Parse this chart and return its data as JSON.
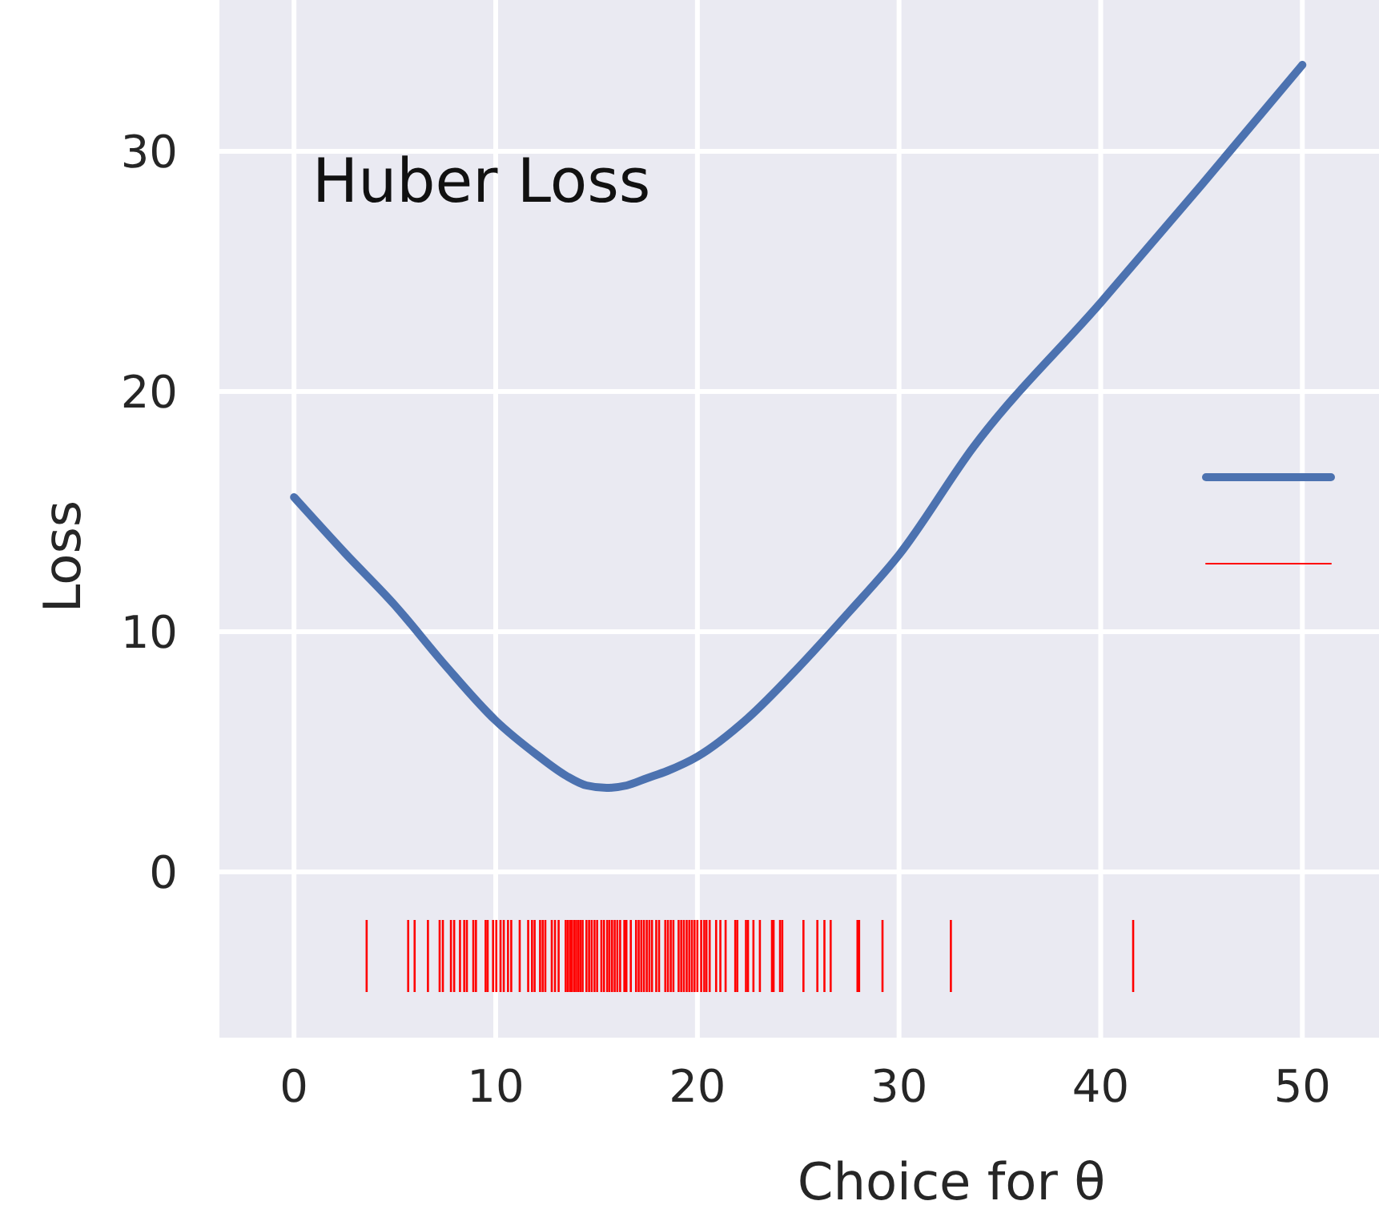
{
  "chart_data": {
    "type": "line",
    "title": "Huber Loss",
    "xlabel": "Choice for θ",
    "ylabel": "Loss",
    "xlim": [
      -3.7,
      53.8
    ],
    "ylim": [
      -6.9,
      36.3
    ],
    "xticks": [
      0,
      10,
      20,
      30,
      40,
      50
    ],
    "yticks": [
      0,
      10,
      20,
      30
    ],
    "grid": true,
    "series": [
      {
        "color": "#4c72b0",
        "marker": "none",
        "x": [
          0,
          2.5,
          5,
          7.5,
          10,
          12,
          13.5,
          14.5,
          15.5,
          16.5,
          17.5,
          18.5,
          20,
          22.5,
          25,
          27.5,
          30,
          33.7,
          40,
          45,
          50
        ],
        "values": [
          15.6,
          13.3,
          11.1,
          8.6,
          6.3,
          4.9,
          4.0,
          3.6,
          3.5,
          3.6,
          3.9,
          4.2,
          4.8,
          6.4,
          8.5,
          10.8,
          13.2,
          17.7,
          23.7,
          28.6,
          33.6
        ]
      },
      {
        "type": "bar",
        "color": "#ff0000",
        "base": [
          -5,
          -5,
          -5,
          -5,
          -5,
          -5,
          -5,
          -5,
          -5,
          -5,
          -5,
          -5,
          -5,
          -5,
          -5,
          -5,
          -5,
          -5,
          -5,
          -5,
          -5,
          -5,
          -5,
          -5,
          -5,
          -5,
          -5,
          -5,
          -5,
          -5,
          -5,
          -5,
          -5,
          -5,
          -5,
          -5,
          -5,
          -5,
          -5,
          -5,
          -5,
          -5,
          -5,
          -5,
          -5,
          -5,
          -5,
          -5,
          -5,
          -5,
          -5,
          -5,
          -5,
          -5,
          -5,
          -5,
          -5,
          -5,
          -5,
          -5,
          -5,
          -5,
          -5,
          -5,
          -5,
          -5,
          -5,
          -5,
          -5,
          -5,
          -5,
          -5,
          -5,
          -5,
          -5,
          -5,
          -5,
          -5,
          -5,
          -5,
          -5,
          -5,
          -5,
          -5,
          -5,
          -5,
          -5,
          -5,
          -5,
          -5,
          -5,
          -5,
          -5,
          -5,
          -5,
          -5,
          -5,
          -5,
          -5,
          -5,
          -5,
          -5,
          -5
        ],
        "x": [
          3.6,
          5.66,
          5.98,
          6.64,
          7.22,
          7.38,
          7.78,
          7.94,
          8.23,
          8.44,
          8.57,
          8.89,
          9.02,
          9.5,
          9.6,
          9.87,
          10.03,
          10.24,
          10.4,
          10.61,
          10.77,
          11.19,
          11.61,
          11.8,
          11.93,
          12.2,
          12.33,
          12.46,
          12.78,
          12.94,
          13.12,
          13.47,
          13.57,
          13.68,
          13.78,
          13.89,
          13.99,
          14.1,
          14.2,
          14.31,
          14.5,
          14.63,
          14.76,
          14.9,
          15.03,
          15.24,
          15.37,
          15.53,
          15.64,
          15.77,
          15.9,
          16.03,
          16.17,
          16.38,
          16.48,
          16.7,
          16.96,
          17.09,
          17.22,
          17.35,
          17.49,
          17.62,
          17.75,
          17.96,
          18.1,
          18.41,
          18.54,
          18.68,
          18.81,
          19.07,
          19.2,
          19.33,
          19.47,
          19.6,
          19.73,
          19.86,
          20.0,
          20.19,
          20.34,
          20.45,
          20.61,
          20.93,
          21.14,
          21.4,
          21.88,
          21.98,
          22.41,
          22.51,
          22.78,
          23.1,
          23.7,
          23.78,
          24.1,
          24.21,
          25.26,
          25.95,
          26.3,
          26.61,
          27.94,
          28.02,
          29.18,
          32.57,
          41.61
        ],
        "values": [
          3,
          3,
          3,
          3,
          3,
          3,
          3,
          3,
          3,
          3,
          3,
          3,
          3,
          3,
          3,
          3,
          3,
          3,
          3,
          3,
          3,
          3,
          3,
          3,
          3,
          3,
          3,
          3,
          3,
          3,
          3,
          3,
          3,
          3,
          3,
          3,
          3,
          3,
          3,
          3,
          3,
          3,
          3,
          3,
          3,
          3,
          3,
          3,
          3,
          3,
          3,
          3,
          3,
          3,
          3,
          3,
          3,
          3,
          3,
          3,
          3,
          3,
          3,
          3,
          3,
          3,
          3,
          3,
          3,
          3,
          3,
          3,
          3,
          3,
          3,
          3,
          3,
          3,
          3,
          3,
          3,
          3,
          3,
          3,
          3,
          3,
          3,
          3,
          3,
          3,
          3,
          3,
          3,
          3,
          3,
          3,
          3,
          3,
          3,
          3,
          3,
          3,
          3
        ]
      }
    ]
  }
}
